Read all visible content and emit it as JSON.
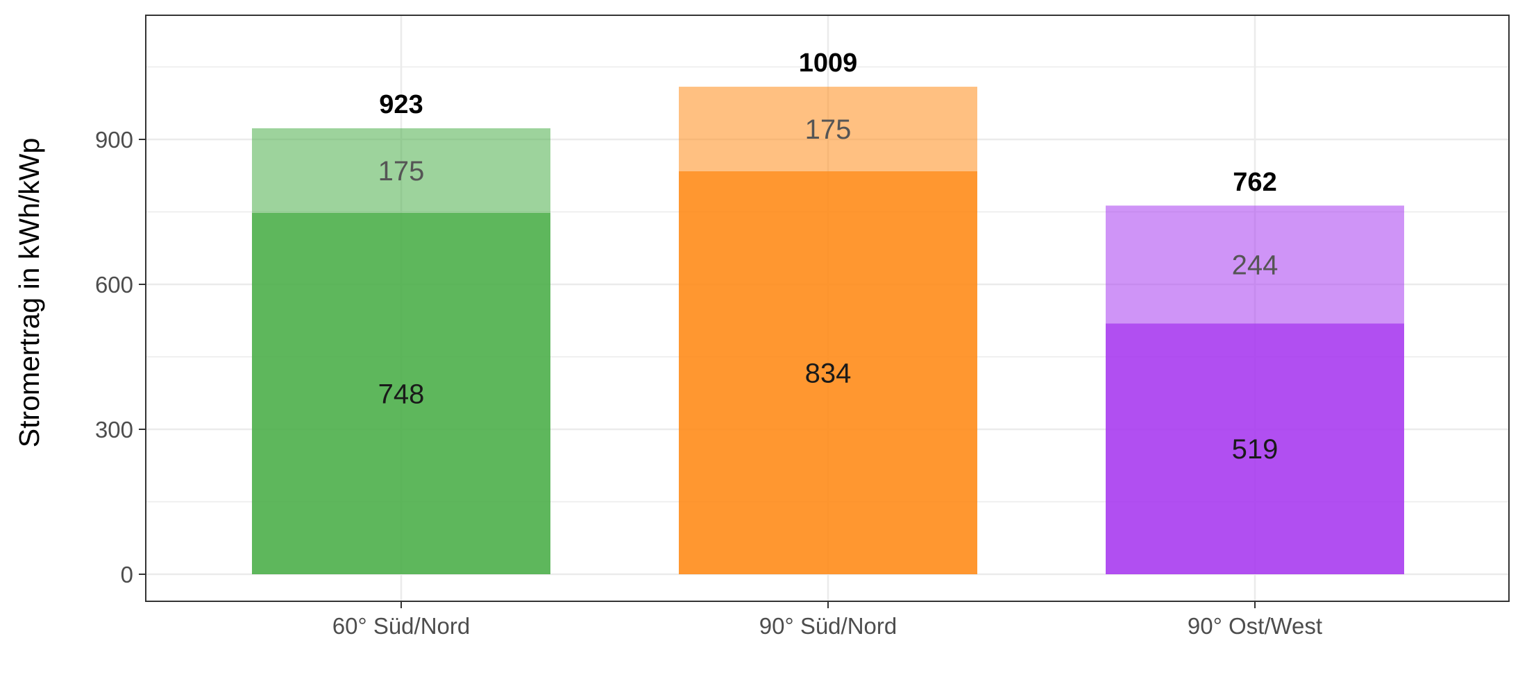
{
  "chart_data": {
    "type": "bar",
    "stacked": true,
    "title": "",
    "xlabel": "",
    "ylabel": "Stromertrag in kWh/kWp",
    "ylim": [
      -75,
      1150
    ],
    "yticks": [
      0,
      300,
      600,
      900
    ],
    "grid": true,
    "legend": "none",
    "categories": [
      "60° Süd/Nord",
      "90° Süd/Nord",
      "90° Ost/West"
    ],
    "bars": [
      {
        "category": "60° Süd/Nord",
        "base": 748,
        "top": 175,
        "total": 923,
        "color": "#4daf4a"
      },
      {
        "category": "90° Süd/Nord",
        "base": 834,
        "top": 175,
        "total": 1009,
        "color": "#ff8c1a"
      },
      {
        "category": "90° Ost/West",
        "base": 519,
        "top": 244,
        "total": 762,
        "color": "#a83cf0"
      }
    ],
    "ytick_labels": [
      "0",
      "300",
      "600",
      "900"
    ],
    "colors": {
      "base_opacity": 0.9,
      "top_opacity": 0.55,
      "grid": "#ebebeb",
      "panel_border": "#333333",
      "tick_text": "#4d4d4d"
    }
  }
}
